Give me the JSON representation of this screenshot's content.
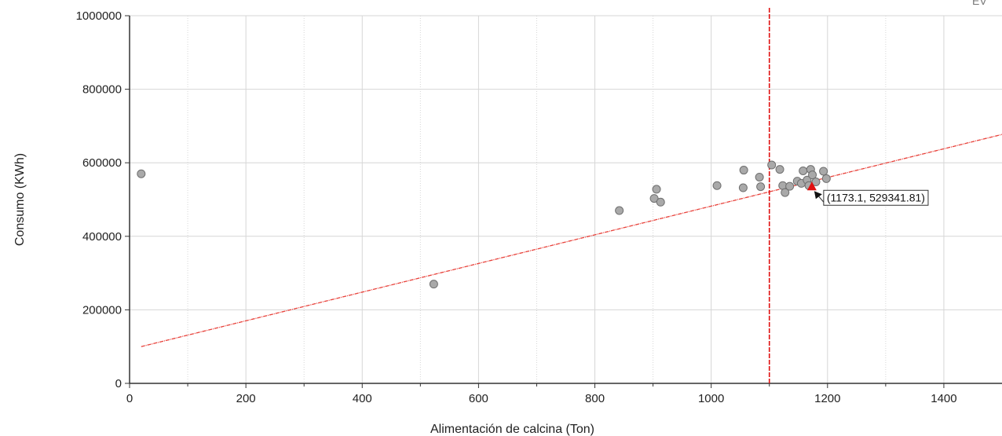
{
  "chart_data": {
    "type": "scatter",
    "xlabel": "Alimentación de calcina (Ton)",
    "ylabel": "Consumo (KWh)",
    "xlim": [
      0,
      1500
    ],
    "ylim": [
      0,
      1000000
    ],
    "xticks": [
      0,
      200,
      400,
      600,
      800,
      1000,
      1200,
      1400
    ],
    "yticks": [
      0,
      200000,
      400000,
      600000,
      800000,
      1000000
    ],
    "grid": true,
    "colors": {
      "points": "#a9a9a9",
      "point_edge": "#6f6f6f",
      "trend": "#e8413a",
      "cursor": "#e01010",
      "marker": "#e01010"
    },
    "points": [
      {
        "x": 20,
        "y": 570000
      },
      {
        "x": 523,
        "y": 270000
      },
      {
        "x": 842,
        "y": 470000
      },
      {
        "x": 902,
        "y": 503000
      },
      {
        "x": 906,
        "y": 528000
      },
      {
        "x": 913,
        "y": 493000
      },
      {
        "x": 1010,
        "y": 538000
      },
      {
        "x": 1055,
        "y": 532000
      },
      {
        "x": 1056,
        "y": 580000
      },
      {
        "x": 1083,
        "y": 561000
      },
      {
        "x": 1085,
        "y": 535000
      },
      {
        "x": 1104,
        "y": 594000
      },
      {
        "x": 1118,
        "y": 582000
      },
      {
        "x": 1123,
        "y": 538000
      },
      {
        "x": 1127,
        "y": 519000
      },
      {
        "x": 1135,
        "y": 536000
      },
      {
        "x": 1148,
        "y": 550000
      },
      {
        "x": 1155,
        "y": 544000
      },
      {
        "x": 1158,
        "y": 578000
      },
      {
        "x": 1165,
        "y": 553000
      },
      {
        "x": 1168,
        "y": 538000
      },
      {
        "x": 1171,
        "y": 582000
      },
      {
        "x": 1174,
        "y": 567000
      },
      {
        "x": 1180,
        "y": 548000
      },
      {
        "x": 1193,
        "y": 577000
      },
      {
        "x": 1198,
        "y": 557000
      }
    ],
    "trendline": {
      "x": [
        20,
        1500
      ],
      "y": [
        100000,
        677000
      ]
    },
    "vertical_line_x": 1100,
    "marker": {
      "x": 1173.1,
      "y": 529341.81
    },
    "annotation": "(1173.1, 529341.81)",
    "corner_text": "EV"
  }
}
